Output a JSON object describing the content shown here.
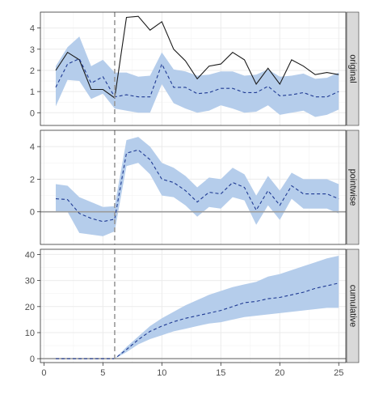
{
  "chart_data": {
    "type": "line",
    "x_ticks": [
      0,
      5,
      10,
      15,
      20,
      25
    ],
    "xlim": [
      -0.3,
      25.6
    ],
    "intervention_x": 6,
    "colors": {
      "band": "#b5cdeb",
      "mean_line": "#1f3a93",
      "observed_line": "#1a1a1a",
      "intervention_line": "#999999",
      "zero_line": "#9a9a9a",
      "panel_bg": "#ffffff",
      "grid": "#ebebeb",
      "strip_bg": "#d9d9d9",
      "border": "#333333"
    },
    "panels": [
      {
        "label": "original",
        "ylim": [
          -0.6,
          4.75
        ],
        "y_ticks": [
          0,
          1,
          2,
          3,
          4
        ],
        "zero_line": false,
        "x": [
          1,
          2,
          3,
          4,
          5,
          6,
          7,
          8,
          9,
          10,
          11,
          12,
          13,
          14,
          15,
          16,
          17,
          18,
          19,
          20,
          21,
          22,
          23,
          24,
          25
        ],
        "observed": [
          2.0,
          2.85,
          2.5,
          1.1,
          1.1,
          0.7,
          4.5,
          4.55,
          3.9,
          4.3,
          3.0,
          2.45,
          1.6,
          2.2,
          2.3,
          2.85,
          2.5,
          1.35,
          2.1,
          1.35,
          2.5,
          2.2,
          1.8,
          1.9,
          1.8
        ],
        "mean": [
          1.2,
          2.3,
          2.55,
          1.4,
          1.7,
          0.75,
          0.85,
          0.75,
          0.75,
          2.3,
          1.2,
          1.2,
          0.9,
          0.95,
          1.15,
          1.15,
          0.95,
          0.95,
          1.25,
          0.8,
          0.85,
          0.95,
          0.75,
          0.75,
          1.0
        ],
        "lower": [
          0.3,
          1.55,
          1.5,
          0.65,
          0.9,
          0.2,
          0.1,
          0.0,
          0.0,
          1.35,
          0.45,
          0.2,
          0.0,
          0.1,
          0.35,
          0.2,
          0.0,
          0.05,
          0.35,
          -0.1,
          0.0,
          0.1,
          -0.2,
          -0.1,
          0.15
        ],
        "upper": [
          2.2,
          3.1,
          3.6,
          2.2,
          2.5,
          1.9,
          1.9,
          1.7,
          1.75,
          2.85,
          2.05,
          1.95,
          1.75,
          1.8,
          1.95,
          1.95,
          1.75,
          1.8,
          2.05,
          1.7,
          1.75,
          1.85,
          1.6,
          1.65,
          1.9
        ]
      },
      {
        "label": "pointwise",
        "ylim": [
          -2.0,
          5.0
        ],
        "y_ticks": [
          0,
          2,
          4
        ],
        "zero_line": true,
        "x": [
          1,
          2,
          3,
          4,
          5,
          6,
          7,
          8,
          9,
          10,
          11,
          12,
          13,
          14,
          15,
          16,
          17,
          18,
          19,
          20,
          21,
          22,
          23,
          24,
          25
        ],
        "mean": [
          0.8,
          0.75,
          -0.1,
          -0.4,
          -0.6,
          -0.45,
          3.6,
          3.8,
          3.2,
          2.0,
          1.8,
          1.3,
          0.6,
          1.2,
          1.1,
          1.8,
          1.5,
          0.1,
          1.3,
          0.4,
          1.6,
          1.1,
          1.1,
          1.1,
          0.8
        ],
        "lower": [
          0.0,
          0.0,
          -1.3,
          -1.4,
          -1.5,
          -1.2,
          2.8,
          3.0,
          2.3,
          1.0,
          0.9,
          0.4,
          -0.3,
          0.3,
          0.2,
          0.9,
          0.7,
          -0.8,
          0.4,
          -0.5,
          0.8,
          0.2,
          0.2,
          0.2,
          -0.1
        ],
        "upper": [
          1.7,
          1.6,
          0.9,
          0.6,
          0.3,
          0.35,
          4.4,
          4.6,
          4.0,
          3.0,
          2.7,
          2.2,
          1.5,
          2.1,
          2.0,
          2.7,
          2.3,
          1.0,
          2.2,
          1.3,
          2.4,
          2.0,
          2.0,
          2.0,
          1.7
        ]
      },
      {
        "label": "cumulative",
        "ylim": [
          -1.5,
          42
        ],
        "y_ticks": [
          0,
          10,
          20,
          30,
          40
        ],
        "zero_line": true,
        "x": [
          1,
          2,
          3,
          4,
          5,
          6,
          7,
          8,
          9,
          10,
          11,
          12,
          13,
          14,
          15,
          16,
          17,
          18,
          19,
          20,
          21,
          22,
          23,
          24,
          25
        ],
        "mean": [
          0,
          0,
          0,
          0,
          0,
          0,
          3.5,
          7.3,
          10.5,
          12.5,
          14.2,
          15.5,
          16.5,
          17.5,
          18.5,
          20.0,
          21.5,
          22.0,
          23.0,
          23.5,
          24.5,
          25.5,
          27.0,
          28.0,
          29.0
        ],
        "lower": [
          0,
          0,
          0,
          0,
          0,
          0,
          2.5,
          5.5,
          7.5,
          9.0,
          10.5,
          11.5,
          12.5,
          13.5,
          14.0,
          15.0,
          16.0,
          16.5,
          17.0,
          17.5,
          18.0,
          18.5,
          19.0,
          19.5,
          19.5
        ],
        "upper": [
          0,
          0,
          0,
          0,
          0,
          0,
          4.5,
          8.5,
          12.5,
          15.5,
          18.0,
          20.5,
          22.5,
          24.5,
          26.0,
          27.5,
          28.5,
          29.5,
          31.5,
          32.5,
          34.0,
          35.5,
          37.0,
          38.5,
          39.5
        ]
      }
    ]
  }
}
